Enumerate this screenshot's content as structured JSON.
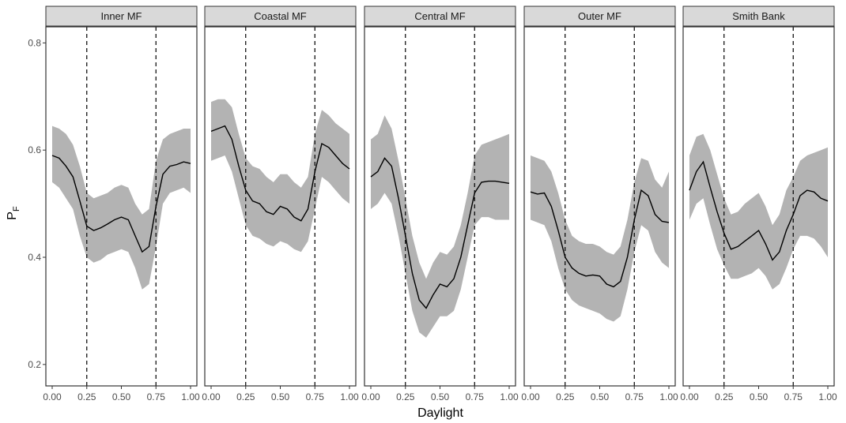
{
  "chart_data": {
    "type": "line",
    "xlabel": "Daylight",
    "ylabel": "P",
    "ylabel_subscript": "F",
    "xlim": [
      0,
      1
    ],
    "ylim": [
      0.16,
      0.83
    ],
    "x_ticks": [
      0,
      0.25,
      0.5,
      0.75,
      1.0
    ],
    "x_tick_labels": [
      "0.00",
      "0.25",
      "0.50",
      "0.75",
      "1.00"
    ],
    "y_ticks": [
      0.2,
      0.4,
      0.6,
      0.8
    ],
    "y_tick_labels": [
      "0.2",
      "0.4",
      "0.6",
      "0.8"
    ],
    "reference_lines_x": [
      0.25,
      0.75
    ],
    "grid": false,
    "colors": {
      "line": "#000000",
      "ribbon": "#b3b3b3",
      "strip": "#d9d9d9"
    },
    "panels": [
      {
        "name": "Inner MF",
        "x": [
          0.0,
          0.05,
          0.1,
          0.15,
          0.2,
          0.25,
          0.3,
          0.35,
          0.4,
          0.45,
          0.5,
          0.55,
          0.6,
          0.65,
          0.7,
          0.75,
          0.8,
          0.85,
          0.9,
          0.95,
          1.0
        ],
        "y": [
          0.59,
          0.585,
          0.57,
          0.55,
          0.505,
          0.458,
          0.45,
          0.455,
          0.462,
          0.47,
          0.475,
          0.47,
          0.44,
          0.41,
          0.42,
          0.495,
          0.555,
          0.57,
          0.573,
          0.578,
          0.575
        ],
        "lower": [
          0.54,
          0.53,
          0.51,
          0.49,
          0.44,
          0.4,
          0.39,
          0.395,
          0.405,
          0.41,
          0.415,
          0.41,
          0.38,
          0.34,
          0.35,
          0.42,
          0.5,
          0.52,
          0.525,
          0.53,
          0.52
        ],
        "upper": [
          0.645,
          0.64,
          0.63,
          0.61,
          0.57,
          0.52,
          0.51,
          0.515,
          0.52,
          0.53,
          0.535,
          0.53,
          0.5,
          0.48,
          0.49,
          0.58,
          0.62,
          0.63,
          0.635,
          0.64,
          0.64
        ]
      },
      {
        "name": "Coastal MF",
        "x": [
          0.0,
          0.05,
          0.1,
          0.15,
          0.2,
          0.25,
          0.3,
          0.35,
          0.4,
          0.45,
          0.5,
          0.55,
          0.6,
          0.65,
          0.7,
          0.75,
          0.8,
          0.85,
          0.9,
          0.95,
          1.0
        ],
        "y": [
          0.635,
          0.64,
          0.645,
          0.62,
          0.57,
          0.525,
          0.505,
          0.5,
          0.485,
          0.48,
          0.495,
          0.49,
          0.475,
          0.468,
          0.49,
          0.56,
          0.612,
          0.605,
          0.59,
          0.575,
          0.565
        ],
        "lower": [
          0.58,
          0.585,
          0.59,
          0.56,
          0.51,
          0.46,
          0.44,
          0.435,
          0.425,
          0.42,
          0.43,
          0.425,
          0.415,
          0.41,
          0.43,
          0.49,
          0.55,
          0.54,
          0.525,
          0.51,
          0.5
        ],
        "upper": [
          0.69,
          0.695,
          0.695,
          0.68,
          0.63,
          0.585,
          0.57,
          0.565,
          0.55,
          0.54,
          0.555,
          0.555,
          0.54,
          0.53,
          0.55,
          0.63,
          0.675,
          0.665,
          0.65,
          0.64,
          0.63
        ]
      },
      {
        "name": "Central MF",
        "x": [
          0.0,
          0.05,
          0.1,
          0.15,
          0.2,
          0.25,
          0.3,
          0.35,
          0.4,
          0.45,
          0.5,
          0.55,
          0.6,
          0.65,
          0.7,
          0.75,
          0.8,
          0.85,
          0.9,
          0.95,
          1.0
        ],
        "y": [
          0.55,
          0.56,
          0.585,
          0.57,
          0.51,
          0.44,
          0.37,
          0.32,
          0.305,
          0.33,
          0.35,
          0.345,
          0.36,
          0.4,
          0.46,
          0.52,
          0.54,
          0.542,
          0.542,
          0.54,
          0.538
        ],
        "lower": [
          0.49,
          0.5,
          0.52,
          0.5,
          0.44,
          0.37,
          0.3,
          0.26,
          0.25,
          0.27,
          0.29,
          0.29,
          0.3,
          0.34,
          0.4,
          0.46,
          0.475,
          0.475,
          0.47,
          0.47,
          0.47
        ],
        "upper": [
          0.62,
          0.63,
          0.665,
          0.64,
          0.58,
          0.51,
          0.44,
          0.39,
          0.36,
          0.39,
          0.41,
          0.405,
          0.42,
          0.46,
          0.52,
          0.59,
          0.61,
          0.615,
          0.62,
          0.625,
          0.63
        ]
      },
      {
        "name": "Outer MF",
        "x": [
          0.0,
          0.05,
          0.1,
          0.15,
          0.2,
          0.25,
          0.3,
          0.35,
          0.4,
          0.45,
          0.5,
          0.55,
          0.6,
          0.65,
          0.7,
          0.75,
          0.8,
          0.85,
          0.9,
          0.95,
          1.0
        ],
        "y": [
          0.522,
          0.518,
          0.52,
          0.495,
          0.45,
          0.4,
          0.38,
          0.37,
          0.365,
          0.367,
          0.365,
          0.35,
          0.345,
          0.355,
          0.4,
          0.47,
          0.525,
          0.515,
          0.48,
          0.467,
          0.465
        ],
        "lower": [
          0.47,
          0.465,
          0.46,
          0.43,
          0.38,
          0.34,
          0.32,
          0.31,
          0.305,
          0.3,
          0.295,
          0.285,
          0.28,
          0.29,
          0.34,
          0.41,
          0.46,
          0.45,
          0.41,
          0.39,
          0.38
        ],
        "upper": [
          0.59,
          0.585,
          0.58,
          0.56,
          0.52,
          0.47,
          0.44,
          0.43,
          0.425,
          0.425,
          0.42,
          0.41,
          0.405,
          0.42,
          0.47,
          0.54,
          0.585,
          0.58,
          0.545,
          0.53,
          0.56
        ]
      },
      {
        "name": "Smith Bank",
        "x": [
          0.0,
          0.05,
          0.1,
          0.15,
          0.2,
          0.25,
          0.3,
          0.35,
          0.4,
          0.45,
          0.5,
          0.55,
          0.6,
          0.65,
          0.7,
          0.75,
          0.8,
          0.85,
          0.9,
          0.95,
          1.0
        ],
        "y": [
          0.525,
          0.56,
          0.578,
          0.53,
          0.485,
          0.445,
          0.415,
          0.42,
          0.43,
          0.44,
          0.45,
          0.425,
          0.395,
          0.41,
          0.45,
          0.48,
          0.515,
          0.525,
          0.522,
          0.51,
          0.505
        ],
        "lower": [
          0.47,
          0.5,
          0.51,
          0.46,
          0.415,
          0.385,
          0.36,
          0.36,
          0.365,
          0.37,
          0.38,
          0.365,
          0.34,
          0.35,
          0.38,
          0.415,
          0.44,
          0.44,
          0.435,
          0.42,
          0.4
        ],
        "upper": [
          0.59,
          0.625,
          0.63,
          0.6,
          0.555,
          0.51,
          0.48,
          0.485,
          0.5,
          0.51,
          0.52,
          0.495,
          0.46,
          0.48,
          0.525,
          0.55,
          0.58,
          0.59,
          0.595,
          0.6,
          0.605
        ]
      }
    ]
  }
}
